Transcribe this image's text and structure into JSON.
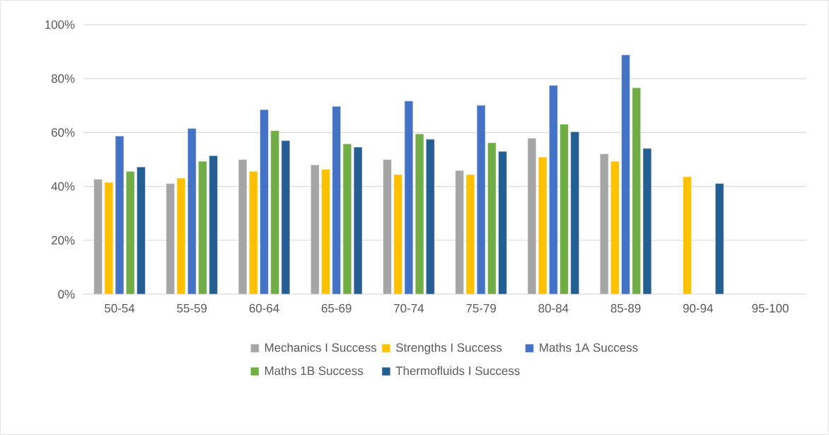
{
  "chart_data": {
    "type": "bar",
    "categories": [
      "50-54",
      "55-59",
      "60-64",
      "65-69",
      "70-74",
      "75-79",
      "80-84",
      "85-89",
      "90-94",
      "95-100"
    ],
    "series": [
      {
        "name": "Mechanics I Success",
        "color": "#a5a5a5",
        "values": [
          42.7,
          41.1,
          50.0,
          48.0,
          50.0,
          45.9,
          57.9,
          52.1,
          null,
          null
        ]
      },
      {
        "name": "Strengths I Success",
        "color": "#ffc000",
        "values": [
          41.5,
          43.1,
          45.6,
          46.4,
          44.4,
          44.4,
          50.9,
          49.3,
          43.6,
          null
        ]
      },
      {
        "name": "Maths 1A Success",
        "color": "#4472c4",
        "values": [
          58.7,
          61.5,
          68.5,
          69.7,
          71.7,
          70.1,
          77.5,
          88.8,
          null,
          null
        ]
      },
      {
        "name": "Maths 1B Success",
        "color": "#70ad47",
        "values": [
          45.6,
          49.3,
          60.7,
          55.8,
          59.5,
          56.2,
          63.1,
          76.6,
          null,
          null
        ]
      },
      {
        "name": "Thermofluids I Success",
        "color": "#255e91",
        "values": [
          47.2,
          51.4,
          57.0,
          54.6,
          57.5,
          53.0,
          60.3,
          54.1,
          41.1,
          null
        ]
      }
    ],
    "ylim": [
      0,
      100
    ],
    "yticks": [
      {
        "value": 0,
        "label": "0%"
      },
      {
        "value": 20,
        "label": "20%"
      },
      {
        "value": 40,
        "label": "40%"
      },
      {
        "value": 60,
        "label": "60%"
      },
      {
        "value": 80,
        "label": "80%"
      },
      {
        "value": 100,
        "label": "100%"
      }
    ],
    "grid": "y",
    "legend": "bottom"
  }
}
